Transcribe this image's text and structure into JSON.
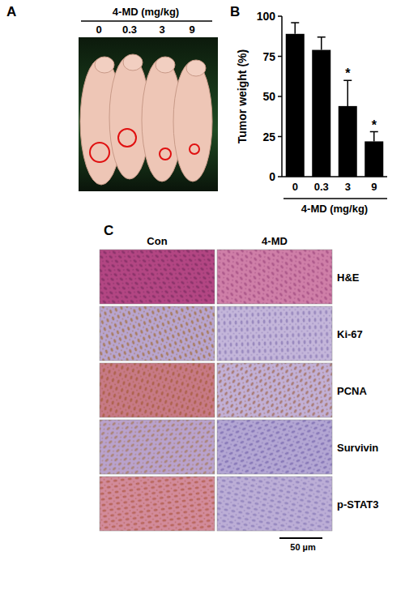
{
  "chart_data": {
    "type": "bar",
    "label": "B",
    "ylabel": "Tumor weight (%)",
    "xlabel": "4-MD (mg/kg)",
    "categories": [
      "0",
      "0.3",
      "3",
      "9"
    ],
    "values": [
      89,
      79,
      44,
      22
    ],
    "errors": [
      7,
      8,
      16,
      6
    ],
    "color": "#000000",
    "ylim": [
      0,
      100
    ],
    "yticks": [
      0,
      25,
      50,
      75,
      100
    ],
    "annotations": [
      {
        "category": "3",
        "text": "*"
      },
      {
        "category": "9",
        "text": "*"
      }
    ]
  },
  "panel_a": {
    "label": "A",
    "header": "4-MD (mg/kg)",
    "doses": [
      "0",
      "0.3",
      "3",
      "9"
    ]
  },
  "panel_c": {
    "label": "C",
    "columns": [
      "Con",
      "4-MD"
    ],
    "rows": [
      "H&E",
      "Ki-67",
      "PCNA",
      "Survivin",
      "p-STAT3"
    ],
    "scale_bar": "50 µm"
  }
}
